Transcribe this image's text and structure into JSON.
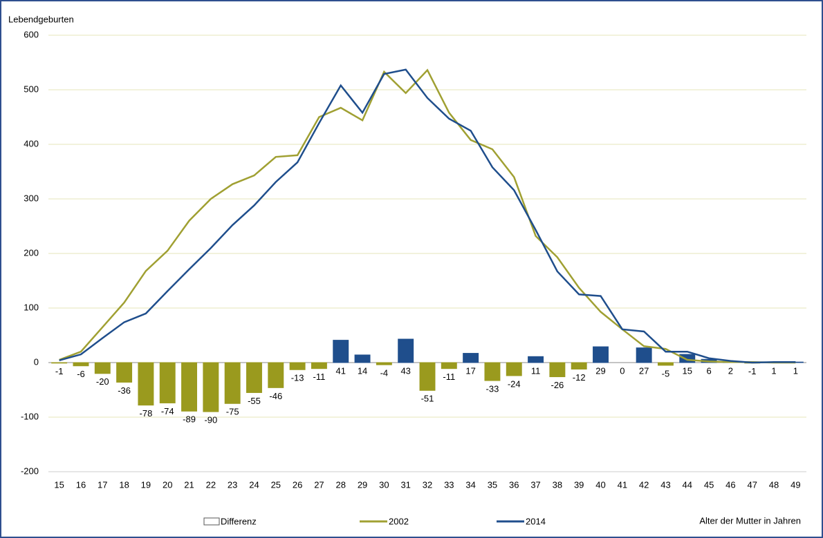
{
  "chart_data": {
    "type": "bar+line",
    "y_label": "Lebendgeburten",
    "x_label": "Alter der Mutter in Jahren",
    "categories": [
      "15",
      "16",
      "17",
      "18",
      "19",
      "20",
      "21",
      "22",
      "23",
      "24",
      "25",
      "26",
      "27",
      "28",
      "29",
      "30",
      "31",
      "32",
      "33",
      "34",
      "35",
      "36",
      "37",
      "38",
      "39",
      "40",
      "41",
      "42",
      "43",
      "44",
      "45",
      "46",
      "47",
      "48",
      "49"
    ],
    "series": [
      {
        "name": "Differenz",
        "type": "bar",
        "color": "#ffffff",
        "positive_color": "#1f4e8c",
        "negative_color": "#9a9a1e",
        "values": [
          -1,
          -6,
          -20,
          -36,
          -78,
          -74,
          -89,
          -90,
          -75,
          -55,
          -46,
          -13,
          -11,
          41,
          14,
          -4,
          43,
          -51,
          -11,
          17,
          -33,
          -24,
          11,
          -26,
          -12,
          29,
          0,
          27,
          -5,
          15,
          6,
          2,
          -1,
          1,
          1
        ]
      },
      {
        "name": "2002",
        "type": "line",
        "color": "#a0a032",
        "values": [
          5,
          20,
          65,
          110,
          168,
          205,
          260,
          300,
          327,
          343,
          377,
          380,
          450,
          467,
          444,
          533,
          494,
          536,
          458,
          408,
          391,
          340,
          232,
          193,
          137,
          93,
          61,
          30,
          25,
          5,
          2,
          1,
          1,
          0,
          0
        ]
      },
      {
        "name": "2014",
        "type": "line",
        "color": "#1f4e8c",
        "values": [
          4,
          15,
          45,
          74,
          90,
          131,
          171,
          210,
          252,
          288,
          331,
          367,
          439,
          508,
          458,
          529,
          537,
          485,
          447,
          425,
          358,
          316,
          243,
          167,
          125,
          122,
          61,
          57,
          20,
          20,
          8,
          3,
          0,
          1,
          1
        ]
      }
    ],
    "ylim": [
      -200,
      600
    ],
    "yticks": [
      -200,
      -100,
      0,
      100,
      200,
      300,
      400,
      500,
      600
    ],
    "grid": true
  }
}
